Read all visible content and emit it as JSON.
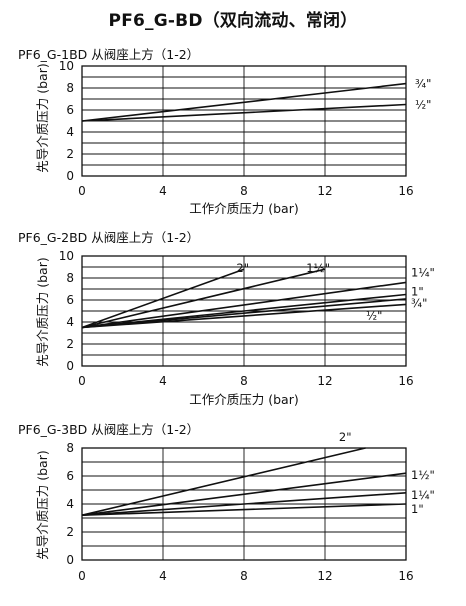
{
  "title": "PF6_G-BD（双向流动、常闭）",
  "chart_data": [
    {
      "type": "line",
      "subtitle": "PF6_G-1BD 从阀座上方（1-2）",
      "xlabel": "工作介质压力 (bar)",
      "ylabel": "先导介质压力 (bar)",
      "xlim": [
        0,
        16
      ],
      "ylim": [
        0,
        10
      ],
      "xticks": [
        "0",
        "4",
        "8",
        "12",
        "16"
      ],
      "yticks": [
        "0",
        "2",
        "4",
        "6",
        "8",
        "10"
      ],
      "grid": true,
      "series": [
        {
          "name": "¾\"",
          "x": [
            0,
            16
          ],
          "y": [
            5.0,
            8.4
          ]
        },
        {
          "name": "½\"",
          "x": [
            0,
            16
          ],
          "y": [
            5.0,
            6.5
          ]
        }
      ]
    },
    {
      "type": "line",
      "subtitle": "PF6_G-2BD 从阀座上方（1-2）",
      "xlabel": "工作介质压力 (bar)",
      "ylabel": "先导介质压力 (bar)",
      "xlim": [
        0,
        16
      ],
      "ylim": [
        0,
        10
      ],
      "xticks": [
        "0",
        "4",
        "8",
        "12",
        "16"
      ],
      "yticks": [
        "0",
        "2",
        "4",
        "6",
        "8",
        "10"
      ],
      "grid": true,
      "series": [
        {
          "name": "2\"",
          "x": [
            0,
            8
          ],
          "y": [
            3.5,
            8.8
          ]
        },
        {
          "name": "1½\"",
          "x": [
            0,
            12
          ],
          "y": [
            3.5,
            8.8
          ]
        },
        {
          "name": "1¼\"",
          "x": [
            0,
            16
          ],
          "y": [
            3.5,
            7.6
          ]
        },
        {
          "name": "1\"",
          "x": [
            0,
            16
          ],
          "y": [
            3.5,
            6.5
          ]
        },
        {
          "name": "¾\"",
          "x": [
            0,
            16
          ],
          "y": [
            3.5,
            6.1
          ]
        },
        {
          "name": "½\"",
          "x": [
            0,
            16
          ],
          "y": [
            3.5,
            5.6
          ]
        }
      ]
    },
    {
      "type": "line",
      "subtitle": "PF6_G-3BD 从阀座上方（1-2）",
      "xlabel": "",
      "ylabel": "先导介质压力 (bar)",
      "xlim": [
        0,
        16
      ],
      "ylim": [
        0,
        8
      ],
      "xticks": [
        "0",
        "4",
        "8",
        "12",
        "16"
      ],
      "yticks": [
        "0",
        "2",
        "4",
        "6",
        "8"
      ],
      "grid": true,
      "series": [
        {
          "name": "2\"",
          "x": [
            0,
            14
          ],
          "y": [
            3.2,
            8.0
          ]
        },
        {
          "name": "1½\"",
          "x": [
            0,
            16
          ],
          "y": [
            3.2,
            6.2
          ]
        },
        {
          "name": "1¼\"",
          "x": [
            0,
            16
          ],
          "y": [
            3.2,
            4.8
          ]
        },
        {
          "name": "1\"",
          "x": [
            0,
            16
          ],
          "y": [
            3.2,
            4.0
          ]
        }
      ]
    }
  ]
}
